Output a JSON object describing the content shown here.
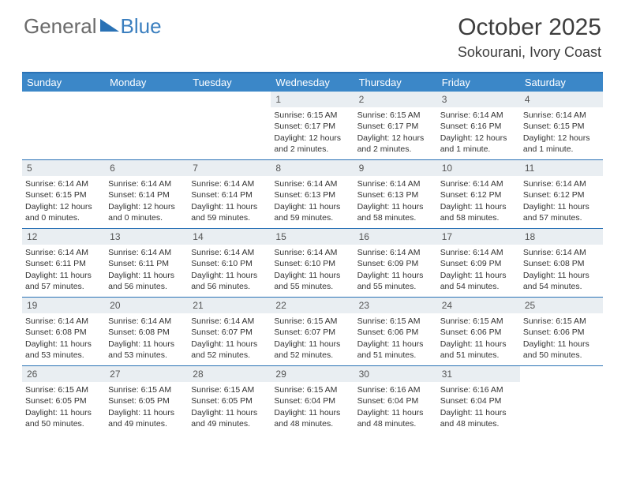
{
  "logo": {
    "word1": "General",
    "word2": "Blue"
  },
  "title": "October 2025",
  "location": "Sokourani, Ivory Coast",
  "day_names": [
    "Sunday",
    "Monday",
    "Tuesday",
    "Wednesday",
    "Thursday",
    "Friday",
    "Saturday"
  ],
  "colors": {
    "header_bg": "#3b87c8",
    "divider": "#2a72b5",
    "daynum_bg": "#e9eef2",
    "logo_gray": "#6b6b6b",
    "logo_blue": "#3b7fbf"
  },
  "weeks": [
    [
      {
        "n": "",
        "empty": true
      },
      {
        "n": "",
        "empty": true
      },
      {
        "n": "",
        "empty": true
      },
      {
        "n": "1",
        "sr": "Sunrise: 6:15 AM",
        "ss": "Sunset: 6:17 PM",
        "dl": "Daylight: 12 hours and 2 minutes."
      },
      {
        "n": "2",
        "sr": "Sunrise: 6:15 AM",
        "ss": "Sunset: 6:17 PM",
        "dl": "Daylight: 12 hours and 2 minutes."
      },
      {
        "n": "3",
        "sr": "Sunrise: 6:14 AM",
        "ss": "Sunset: 6:16 PM",
        "dl": "Daylight: 12 hours and 1 minute."
      },
      {
        "n": "4",
        "sr": "Sunrise: 6:14 AM",
        "ss": "Sunset: 6:15 PM",
        "dl": "Daylight: 12 hours and 1 minute."
      }
    ],
    [
      {
        "n": "5",
        "sr": "Sunrise: 6:14 AM",
        "ss": "Sunset: 6:15 PM",
        "dl": "Daylight: 12 hours and 0 minutes."
      },
      {
        "n": "6",
        "sr": "Sunrise: 6:14 AM",
        "ss": "Sunset: 6:14 PM",
        "dl": "Daylight: 12 hours and 0 minutes."
      },
      {
        "n": "7",
        "sr": "Sunrise: 6:14 AM",
        "ss": "Sunset: 6:14 PM",
        "dl": "Daylight: 11 hours and 59 minutes."
      },
      {
        "n": "8",
        "sr": "Sunrise: 6:14 AM",
        "ss": "Sunset: 6:13 PM",
        "dl": "Daylight: 11 hours and 59 minutes."
      },
      {
        "n": "9",
        "sr": "Sunrise: 6:14 AM",
        "ss": "Sunset: 6:13 PM",
        "dl": "Daylight: 11 hours and 58 minutes."
      },
      {
        "n": "10",
        "sr": "Sunrise: 6:14 AM",
        "ss": "Sunset: 6:12 PM",
        "dl": "Daylight: 11 hours and 58 minutes."
      },
      {
        "n": "11",
        "sr": "Sunrise: 6:14 AM",
        "ss": "Sunset: 6:12 PM",
        "dl": "Daylight: 11 hours and 57 minutes."
      }
    ],
    [
      {
        "n": "12",
        "sr": "Sunrise: 6:14 AM",
        "ss": "Sunset: 6:11 PM",
        "dl": "Daylight: 11 hours and 57 minutes."
      },
      {
        "n": "13",
        "sr": "Sunrise: 6:14 AM",
        "ss": "Sunset: 6:11 PM",
        "dl": "Daylight: 11 hours and 56 minutes."
      },
      {
        "n": "14",
        "sr": "Sunrise: 6:14 AM",
        "ss": "Sunset: 6:10 PM",
        "dl": "Daylight: 11 hours and 56 minutes."
      },
      {
        "n": "15",
        "sr": "Sunrise: 6:14 AM",
        "ss": "Sunset: 6:10 PM",
        "dl": "Daylight: 11 hours and 55 minutes."
      },
      {
        "n": "16",
        "sr": "Sunrise: 6:14 AM",
        "ss": "Sunset: 6:09 PM",
        "dl": "Daylight: 11 hours and 55 minutes."
      },
      {
        "n": "17",
        "sr": "Sunrise: 6:14 AM",
        "ss": "Sunset: 6:09 PM",
        "dl": "Daylight: 11 hours and 54 minutes."
      },
      {
        "n": "18",
        "sr": "Sunrise: 6:14 AM",
        "ss": "Sunset: 6:08 PM",
        "dl": "Daylight: 11 hours and 54 minutes."
      }
    ],
    [
      {
        "n": "19",
        "sr": "Sunrise: 6:14 AM",
        "ss": "Sunset: 6:08 PM",
        "dl": "Daylight: 11 hours and 53 minutes."
      },
      {
        "n": "20",
        "sr": "Sunrise: 6:14 AM",
        "ss": "Sunset: 6:08 PM",
        "dl": "Daylight: 11 hours and 53 minutes."
      },
      {
        "n": "21",
        "sr": "Sunrise: 6:14 AM",
        "ss": "Sunset: 6:07 PM",
        "dl": "Daylight: 11 hours and 52 minutes."
      },
      {
        "n": "22",
        "sr": "Sunrise: 6:15 AM",
        "ss": "Sunset: 6:07 PM",
        "dl": "Daylight: 11 hours and 52 minutes."
      },
      {
        "n": "23",
        "sr": "Sunrise: 6:15 AM",
        "ss": "Sunset: 6:06 PM",
        "dl": "Daylight: 11 hours and 51 minutes."
      },
      {
        "n": "24",
        "sr": "Sunrise: 6:15 AM",
        "ss": "Sunset: 6:06 PM",
        "dl": "Daylight: 11 hours and 51 minutes."
      },
      {
        "n": "25",
        "sr": "Sunrise: 6:15 AM",
        "ss": "Sunset: 6:06 PM",
        "dl": "Daylight: 11 hours and 50 minutes."
      }
    ],
    [
      {
        "n": "26",
        "sr": "Sunrise: 6:15 AM",
        "ss": "Sunset: 6:05 PM",
        "dl": "Daylight: 11 hours and 50 minutes."
      },
      {
        "n": "27",
        "sr": "Sunrise: 6:15 AM",
        "ss": "Sunset: 6:05 PM",
        "dl": "Daylight: 11 hours and 49 minutes."
      },
      {
        "n": "28",
        "sr": "Sunrise: 6:15 AM",
        "ss": "Sunset: 6:05 PM",
        "dl": "Daylight: 11 hours and 49 minutes."
      },
      {
        "n": "29",
        "sr": "Sunrise: 6:15 AM",
        "ss": "Sunset: 6:04 PM",
        "dl": "Daylight: 11 hours and 48 minutes."
      },
      {
        "n": "30",
        "sr": "Sunrise: 6:16 AM",
        "ss": "Sunset: 6:04 PM",
        "dl": "Daylight: 11 hours and 48 minutes."
      },
      {
        "n": "31",
        "sr": "Sunrise: 6:16 AM",
        "ss": "Sunset: 6:04 PM",
        "dl": "Daylight: 11 hours and 48 minutes."
      },
      {
        "n": "",
        "empty": true
      }
    ]
  ]
}
